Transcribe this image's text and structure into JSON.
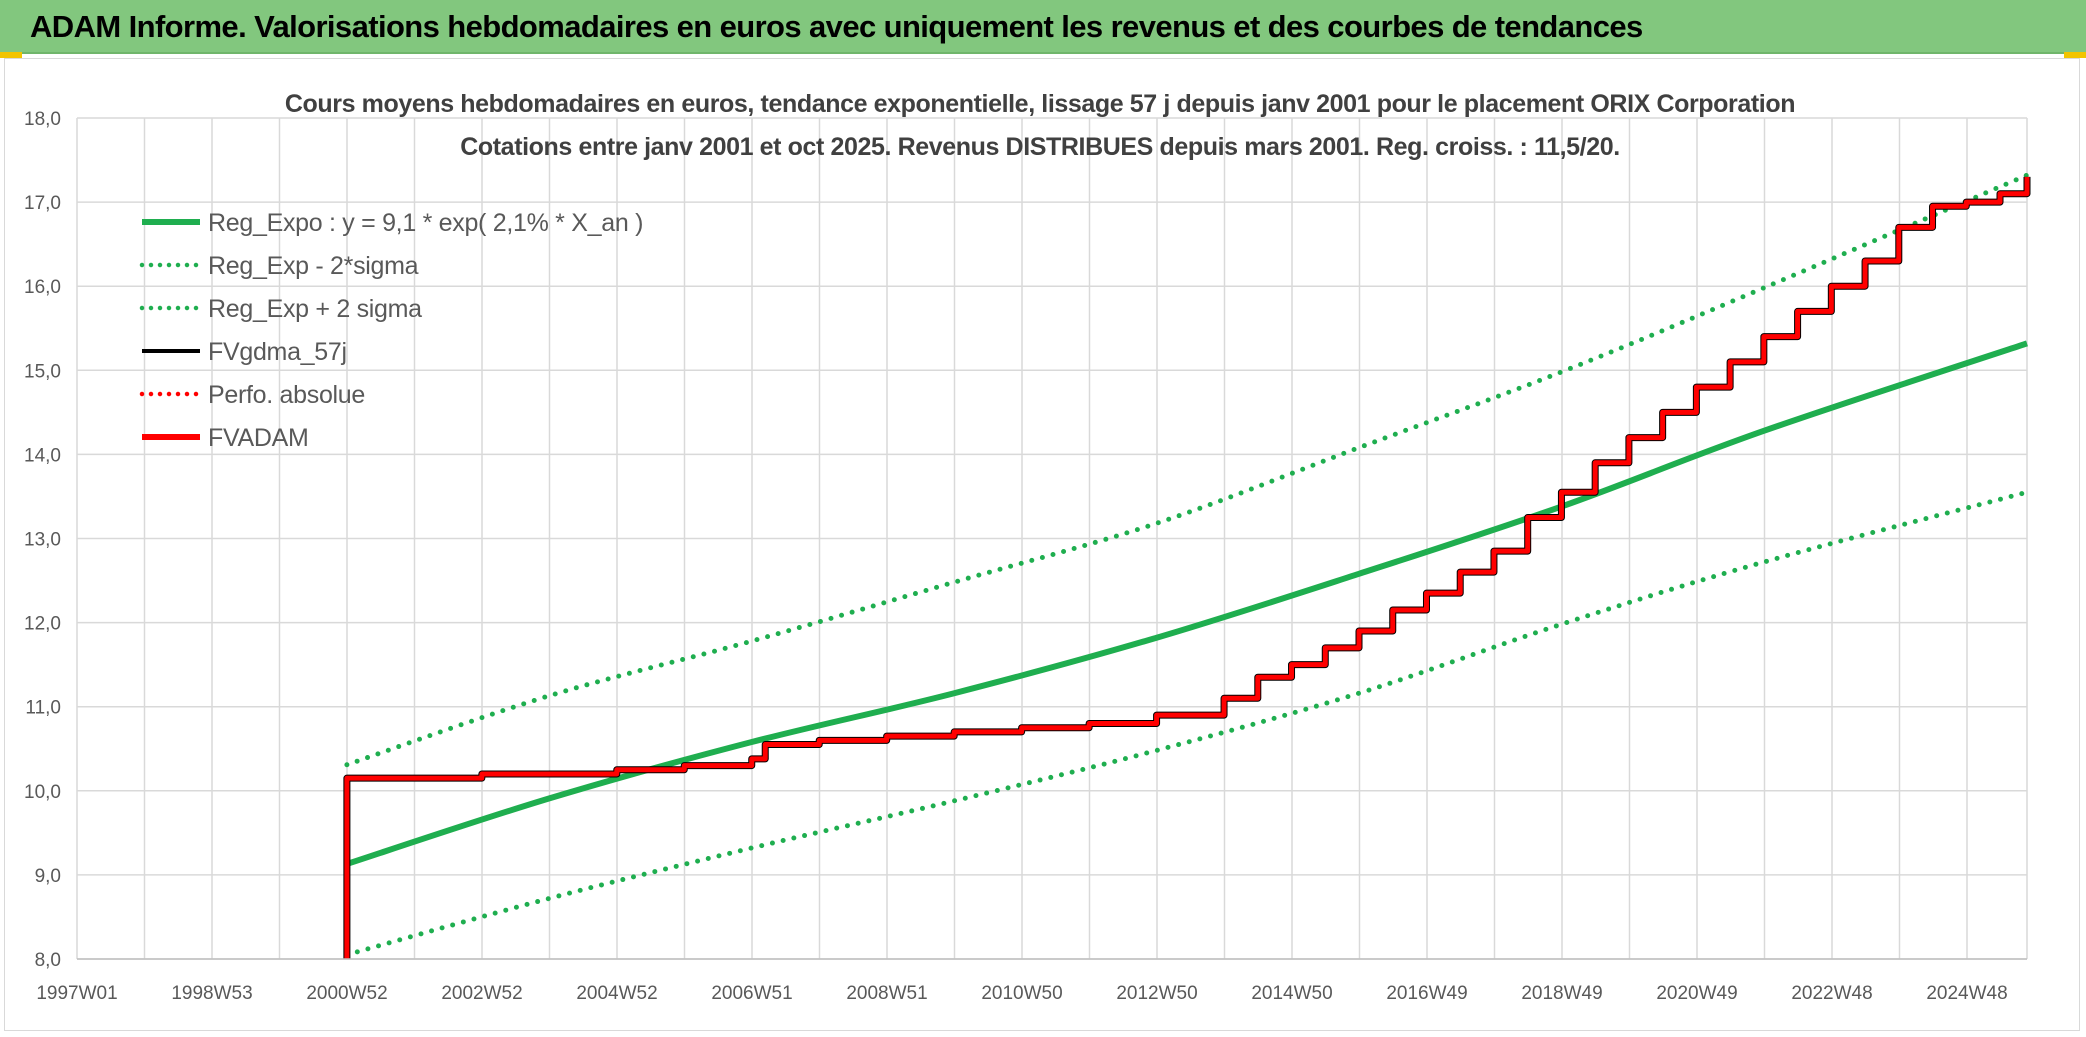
{
  "header": {
    "title": "ADAM Informe. Valorisations hebdomadaires en euros avec uniquement les revenus et des courbes de tendances"
  },
  "colors": {
    "header_bg": "#82c77e",
    "reg_green": "#1fae4f",
    "fvadam_red": "#ff0000",
    "fvgdma_black": "#000000",
    "grid": "#d9d9d9"
  },
  "chart_data": {
    "type": "line",
    "title": "Cours moyens hebdomadaires en euros, tendance exponentielle, lissage 57 j depuis janv 2001 pour le placement ORIX Corporation",
    "subtitle": "Cotations entre janv 2001 et oct 2025. Revenus DISTRIBUES depuis mars 2001. Reg. croiss. : 11,5/20.",
    "xlabel": "",
    "ylabel": "",
    "x_range_years": [
      1997.0,
      2025.9
    ],
    "x_ticks": [
      "1997W01",
      "1998W53",
      "2000W52",
      "2002W52",
      "2004W52",
      "2006W51",
      "2008W51",
      "2010W50",
      "2012W50",
      "2014W50",
      "2016W49",
      "2018W49",
      "2020W49",
      "2022W48",
      "2024W48"
    ],
    "y_range": [
      8.0,
      18.0
    ],
    "y_ticks": [
      "8,0",
      "9,0",
      "10,0",
      "11,0",
      "12,0",
      "13,0",
      "14,0",
      "15,0",
      "16,0",
      "17,0",
      "18,0"
    ],
    "grid": true,
    "legend_position": "top-left",
    "legend": [
      {
        "label": "Reg_Expo : y = 9,1 * exp( 2,1% *  X_an )",
        "color": "#1fae4f",
        "style": "solid-thick"
      },
      {
        "label": "Reg_Exp - 2*sigma",
        "color": "#1fae4f",
        "style": "dotted"
      },
      {
        "label": "Reg_Exp + 2 sigma",
        "color": "#1fae4f",
        "style": "dotted"
      },
      {
        "label": "FVgdma_57j",
        "color": "#000000",
        "style": "solid"
      },
      {
        "label": "Perfo. absolue",
        "color": "#ff0000",
        "style": "dotted"
      },
      {
        "label": "FVADAM",
        "color": "#ff0000",
        "style": "solid-thick"
      }
    ],
    "series": [
      {
        "name": "Reg_Expo : y = 9,1 * exp( 2,1% *  X_an )",
        "x": [
          2001.0,
          2004.0,
          2007.0,
          2010.0,
          2013.0,
          2016.0,
          2019.0,
          2022.0,
          2025.9
        ],
        "values": [
          9.13,
          9.91,
          10.58,
          11.16,
          11.82,
          12.58,
          13.38,
          14.28,
          15.32
        ]
      },
      {
        "name": "Reg_Exp - 2*sigma",
        "x": [
          2001.0,
          2004.0,
          2007.0,
          2010.0,
          2013.0,
          2016.0,
          2019.0,
          2022.0,
          2025.9
        ],
        "values": [
          8.05,
          8.72,
          9.32,
          9.88,
          10.48,
          11.16,
          11.98,
          12.72,
          13.55
        ]
      },
      {
        "name": "Reg_Exp + 2 sigma",
        "x": [
          2001.0,
          2004.0,
          2007.0,
          2010.0,
          2013.0,
          2016.0,
          2019.0,
          2022.0,
          2025.9
        ],
        "values": [
          10.31,
          11.13,
          11.78,
          12.48,
          13.18,
          14.08,
          14.98,
          15.98,
          17.32
        ]
      },
      {
        "name": "FVADAM",
        "x": [
          2001.0,
          2001.0,
          2003.0,
          2005.0,
          2006.0,
          2007.0,
          2007.2,
          2008.0,
          2009.0,
          2010.0,
          2011.0,
          2012.0,
          2013.0,
          2014.0,
          2014.5,
          2015.0,
          2015.5,
          2016.0,
          2016.5,
          2017.0,
          2017.5,
          2018.0,
          2018.5,
          2019.0,
          2019.5,
          2020.0,
          2020.5,
          2021.0,
          2021.5,
          2022.0,
          2022.5,
          2023.0,
          2023.5,
          2024.0,
          2024.5,
          2025.0,
          2025.5,
          2025.9
        ],
        "values": [
          8.0,
          10.15,
          10.2,
          10.25,
          10.3,
          10.38,
          10.55,
          10.6,
          10.65,
          10.7,
          10.75,
          10.8,
          10.9,
          11.1,
          11.35,
          11.5,
          11.7,
          11.9,
          12.15,
          12.35,
          12.6,
          12.85,
          13.25,
          13.55,
          13.9,
          14.2,
          14.5,
          14.8,
          15.1,
          15.4,
          15.7,
          16.0,
          16.3,
          16.7,
          16.95,
          17.0,
          17.1,
          17.3
        ]
      }
    ]
  }
}
